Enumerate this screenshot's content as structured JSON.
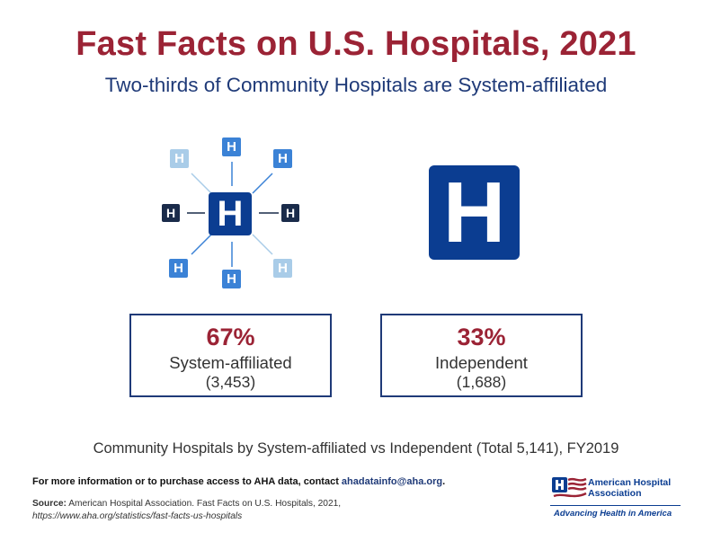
{
  "header": {
    "title": "Fast Facts on U.S. Hospitals, 2021",
    "subtitle": "Two-thirds of Community Hospitals are System-affiliated"
  },
  "icons": {
    "hospital_letter": "H",
    "network_icon": "hospital-network-icon",
    "independent_icon": "hospital-icon",
    "colors": {
      "navy": "#0b3d91",
      "mid_blue": "#3b82d6",
      "light_blue": "#a9cce8",
      "dark": "#1a2b4a",
      "accent_red": "#9b2335"
    }
  },
  "stats": {
    "system": {
      "percent": "67%",
      "label": "System-affiliated",
      "count": "(3,453)"
    },
    "independent": {
      "percent": "33%",
      "label": "Independent",
      "count": "(1,688)"
    }
  },
  "caption": "Community Hospitals by System-affiliated vs Independent (Total 5,141), FY2019",
  "footer": {
    "info_text": "For more information or to purchase access to AHA data, contact ",
    "info_email": "ahadatainfo@aha.org",
    "info_end": ".",
    "source_label": "Source:",
    "source_text": " American Hospital Association. Fast Facts on U.S. Hospitals, 2021,",
    "source_url": "https://www.aha.org/statistics/fast-facts-us-hospitals"
  },
  "logo": {
    "name_line1": "American Hospital",
    "name_line2": "Association",
    "tagline": "Advancing Health in America"
  }
}
